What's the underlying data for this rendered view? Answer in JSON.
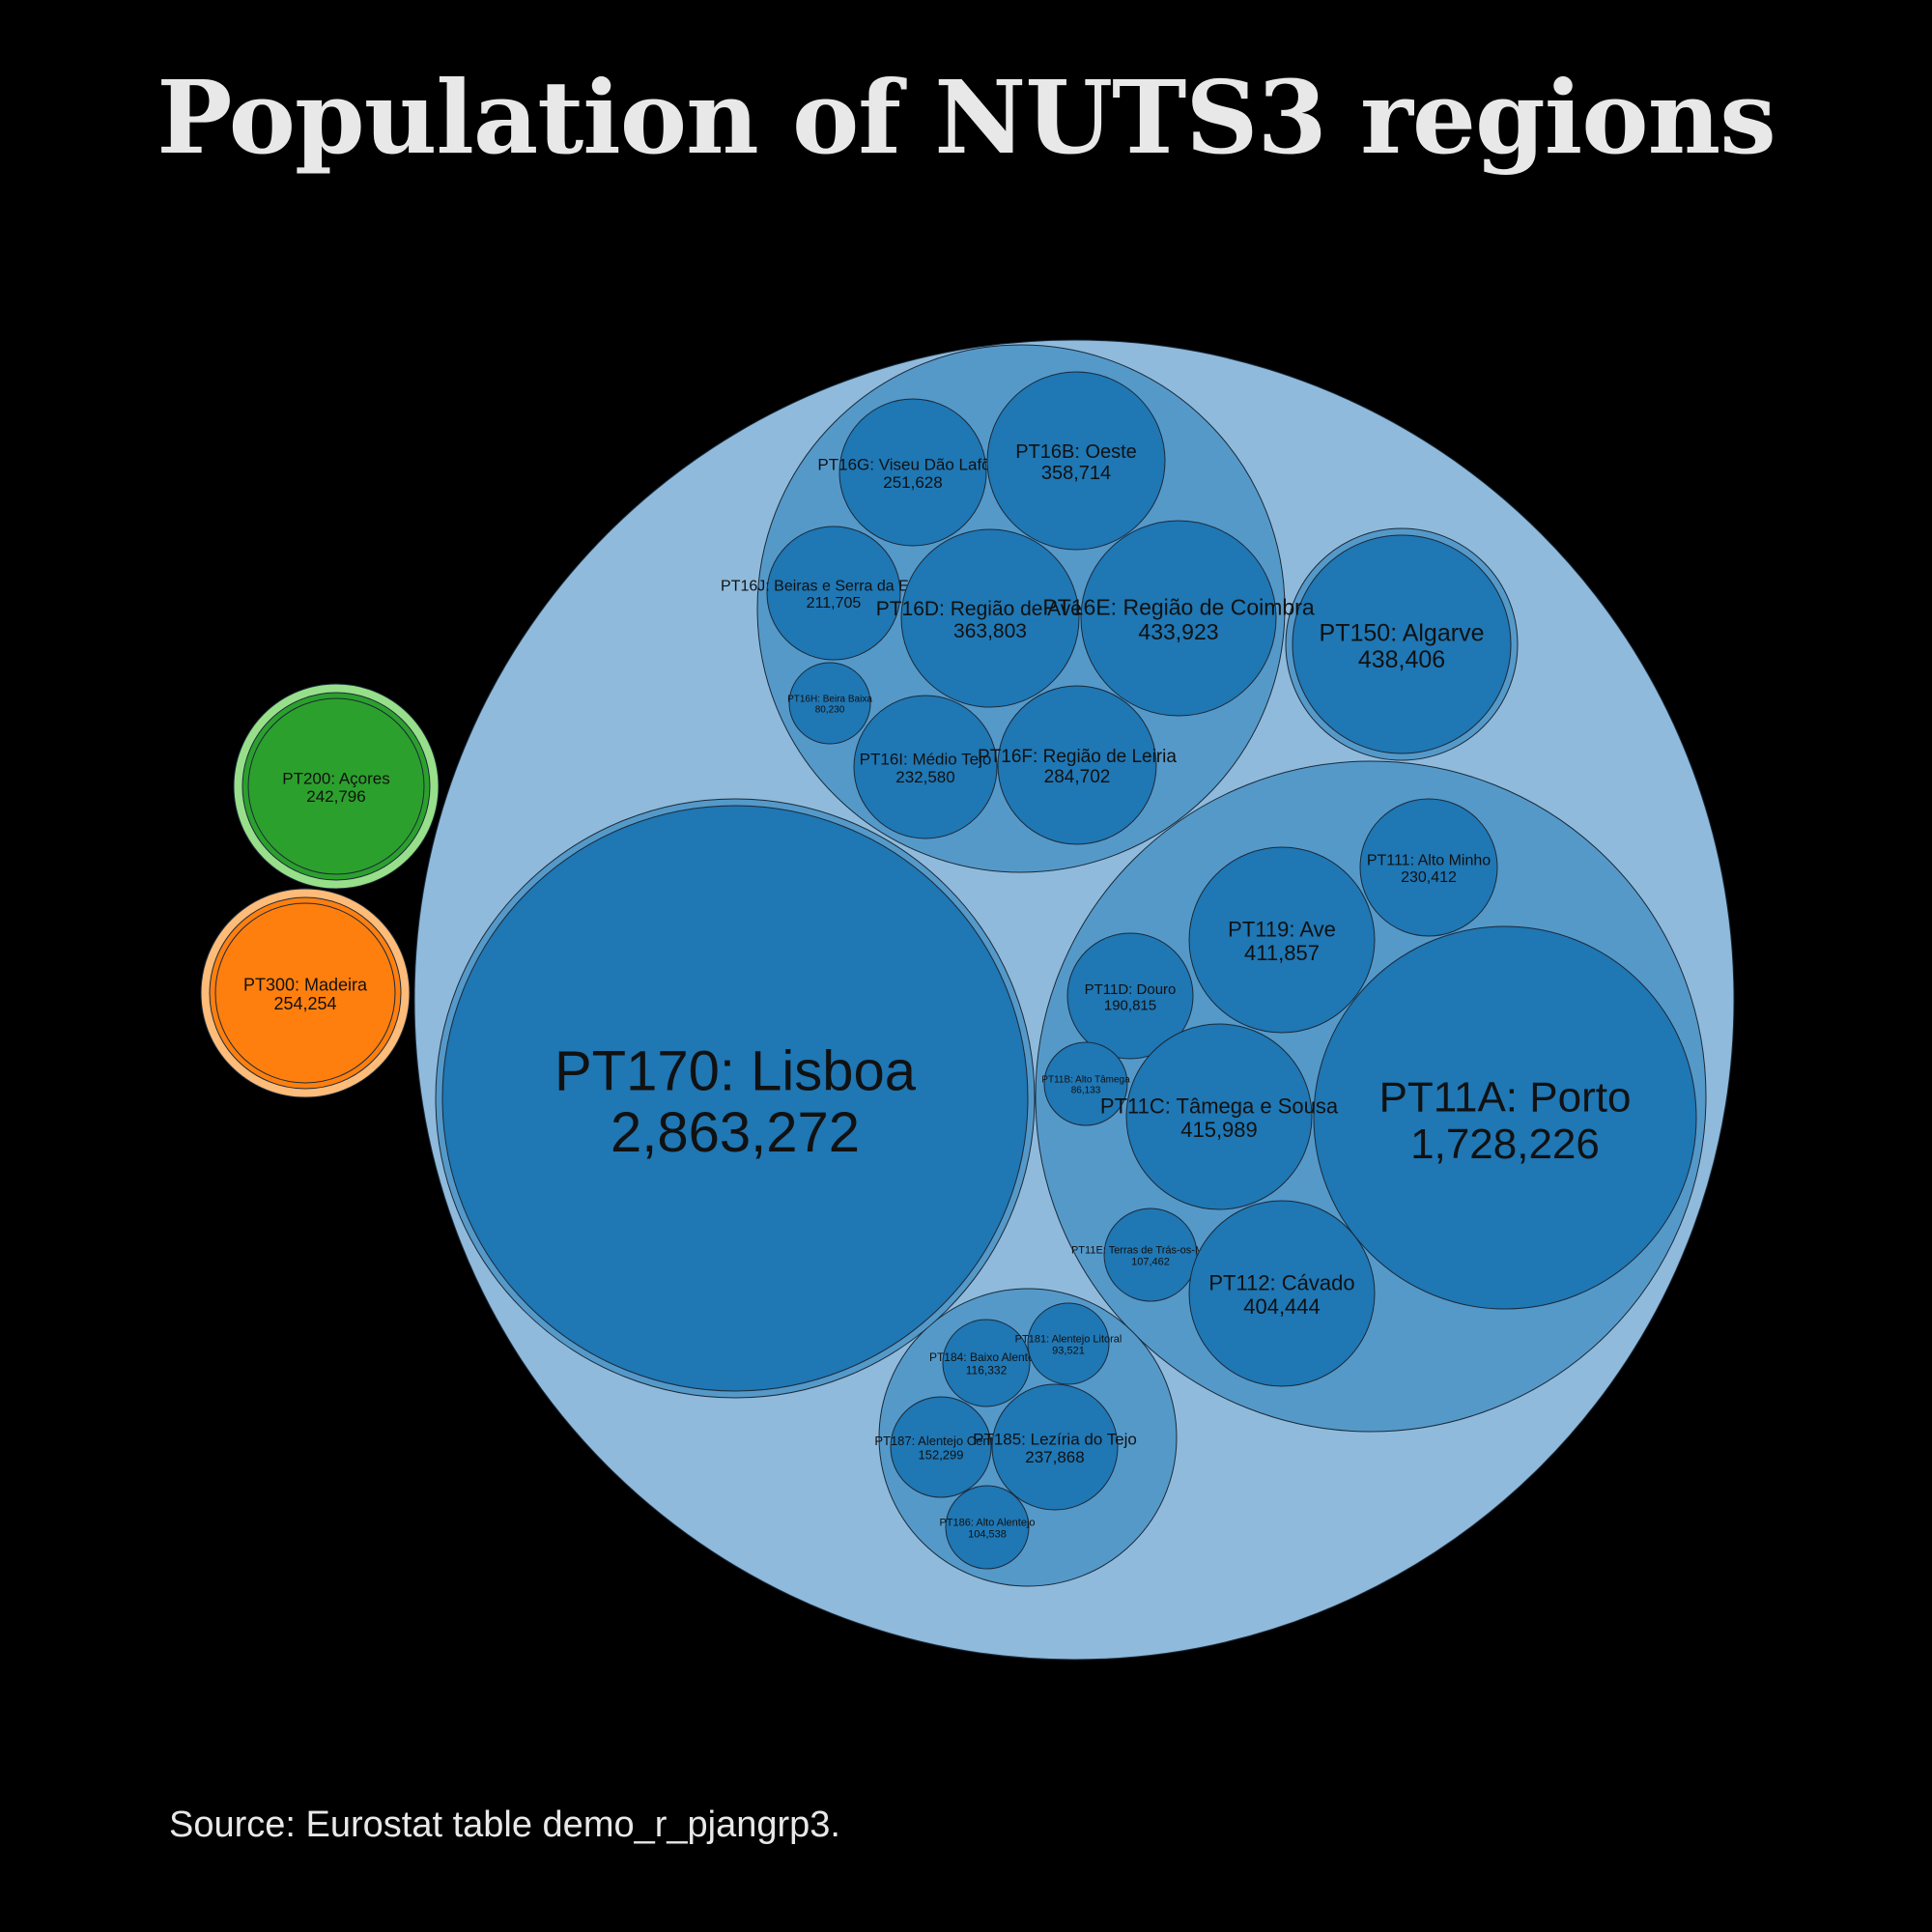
{
  "chart_data": {
    "type": "packed-bubble",
    "title": "Population of NUTS3 regions",
    "source": "Source: Eurostat table demo_r_pjangrp3.",
    "colors": {
      "PT1_outer": "#8fbadb",
      "PT1_group": "#5599c9",
      "PT1_leaf": "#1f77b4",
      "PT2_outer": "#98df8a",
      "PT2_leaf": "#2ca02c",
      "PT3_outer": "#ffbb78",
      "PT3_leaf": "#ff7f0e",
      "stroke": "#1a2a3a"
    },
    "regions": [
      {
        "code": "PT170",
        "label": "PT170: Lisboa",
        "value_label": "2,863,272",
        "value": 2863272,
        "group": "PT17",
        "country": "PT1"
      },
      {
        "code": "PT11A",
        "label": "PT11A: Porto",
        "value_label": "1,728,226",
        "value": 1728226,
        "group": "PT11",
        "country": "PT1"
      },
      {
        "code": "PT111",
        "label": "PT111: Alto Minho",
        "value_label": "230,412",
        "value": 230412,
        "group": "PT11",
        "country": "PT1"
      },
      {
        "code": "PT119",
        "label": "PT119: Ave",
        "value_label": "411,857",
        "value": 411857,
        "group": "PT11",
        "country": "PT1"
      },
      {
        "code": "PT11D",
        "label": "PT11D: Douro",
        "value_label": "190,815",
        "value": 190815,
        "group": "PT11",
        "country": "PT1"
      },
      {
        "code": "PT11B",
        "label": "PT11B: Alto Tâmega",
        "value_label": "86,133",
        "value": 86133,
        "group": "PT11",
        "country": "PT1"
      },
      {
        "code": "PT11C",
        "label": "PT11C: Tâmega e Sousa",
        "value_label": "415,989",
        "value": 415989,
        "group": "PT11",
        "country": "PT1"
      },
      {
        "code": "PT11E",
        "label": "PT11E: Terras de Trás-os-Montes",
        "value_label": "107,462",
        "value": 107462,
        "group": "PT11",
        "country": "PT1"
      },
      {
        "code": "PT112",
        "label": "PT112: Cávado",
        "value_label": "404,444",
        "value": 404444,
        "group": "PT11",
        "country": "PT1"
      },
      {
        "code": "PT150",
        "label": "PT150: Algarve",
        "value_label": "438,406",
        "value": 438406,
        "group": "PT15",
        "country": "PT1"
      },
      {
        "code": "PT16G",
        "label": "PT16G: Viseu Dão Lafões",
        "value_label": "251,628",
        "value": 251628,
        "group": "PT16",
        "country": "PT1"
      },
      {
        "code": "PT16B",
        "label": "PT16B: Oeste",
        "value_label": "358,714",
        "value": 358714,
        "group": "PT16",
        "country": "PT1"
      },
      {
        "code": "PT16J",
        "label": "PT16J: Beiras e Serra da Estrela",
        "value_label": "211,705",
        "value": 211705,
        "group": "PT16",
        "country": "PT1"
      },
      {
        "code": "PT16D",
        "label": "PT16D: Região de Aveiro",
        "value_label": "363,803",
        "value": 363803,
        "group": "PT16",
        "country": "PT1"
      },
      {
        "code": "PT16E",
        "label": "PT16E: Região de Coimbra",
        "value_label": "433,923",
        "value": 433923,
        "group": "PT16",
        "country": "PT1"
      },
      {
        "code": "PT16H",
        "label": "PT16H: Beira Baixa",
        "value_label": "80,230",
        "value": 80230,
        "group": "PT16",
        "country": "PT1"
      },
      {
        "code": "PT16I",
        "label": "PT16I: Médio Tejo",
        "value_label": "232,580",
        "value": 232580,
        "group": "PT16",
        "country": "PT1"
      },
      {
        "code": "PT16F",
        "label": "PT16F: Região de Leiria",
        "value_label": "284,702",
        "value": 284702,
        "group": "PT16",
        "country": "PT1"
      },
      {
        "code": "PT184",
        "label": "PT184: Baixo Alentejo",
        "value_label": "116,332",
        "value": 116332,
        "group": "PT18",
        "country": "PT1"
      },
      {
        "code": "PT181",
        "label": "PT181: Alentejo Litoral",
        "value_label": "93,521",
        "value": 93521,
        "group": "PT18",
        "country": "PT1"
      },
      {
        "code": "PT187",
        "label": "PT187: Alentejo Central",
        "value_label": "152,299",
        "value": 152299,
        "group": "PT18",
        "country": "PT1"
      },
      {
        "code": "PT185",
        "label": "PT185: Lezíria do Tejo",
        "value_label": "237,868",
        "value": 237868,
        "group": "PT18",
        "country": "PT1"
      },
      {
        "code": "PT186",
        "label": "PT186: Alto Alentejo",
        "value_label": "104,538",
        "value": 104538,
        "group": "PT18",
        "country": "PT1"
      },
      {
        "code": "PT200",
        "label": "PT200: Açores",
        "value_label": "242,796",
        "value": 242796,
        "group": "PT20",
        "country": "PT2"
      },
      {
        "code": "PT300",
        "label": "PT300: Madeira",
        "value_label": "254,254",
        "value": 254254,
        "group": "PT30",
        "country": "PT3"
      }
    ]
  }
}
